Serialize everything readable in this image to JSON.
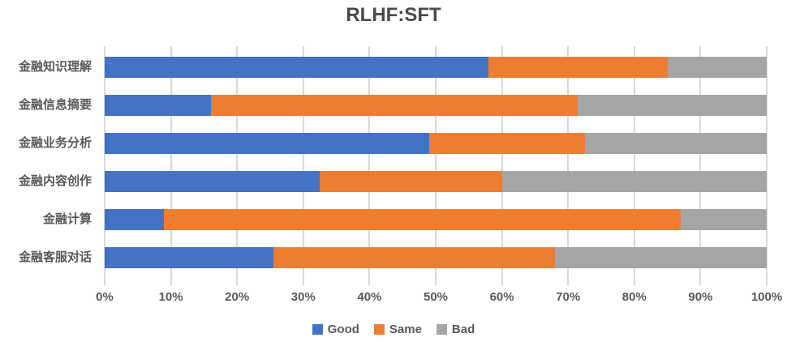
{
  "title": "RLHF:SFT",
  "chart_data": {
    "type": "bar",
    "orientation": "horizontal",
    "stacked": true,
    "stacked_total": 100,
    "title": "RLHF:SFT",
    "categories": [
      "金融知识理解",
      "金融信息摘要",
      "金融业务分析",
      "金融内容创作",
      "金融计算",
      "金融客服对话"
    ],
    "series": [
      {
        "name": "Good",
        "color": "#4472C4",
        "values": [
          58,
          16,
          49,
          32.5,
          9,
          25.5
        ]
      },
      {
        "name": "Same",
        "color": "#ED7D31",
        "values": [
          27,
          55.5,
          23.5,
          27.5,
          78,
          42.5
        ]
      },
      {
        "name": "Bad",
        "color": "#A5A5A5",
        "values": [
          15,
          28.5,
          27.5,
          40,
          13,
          32
        ]
      }
    ],
    "x_ticks": [
      "0%",
      "10%",
      "20%",
      "30%",
      "40%",
      "50%",
      "60%",
      "70%",
      "80%",
      "90%",
      "100%"
    ],
    "xlim": [
      0,
      100
    ],
    "grid": "vertical",
    "legend_position": "bottom",
    "colors": {
      "grid": "#D9D9D9",
      "text": "#595959",
      "title": "#4A4A4A",
      "background": "#FFFFFF"
    }
  }
}
